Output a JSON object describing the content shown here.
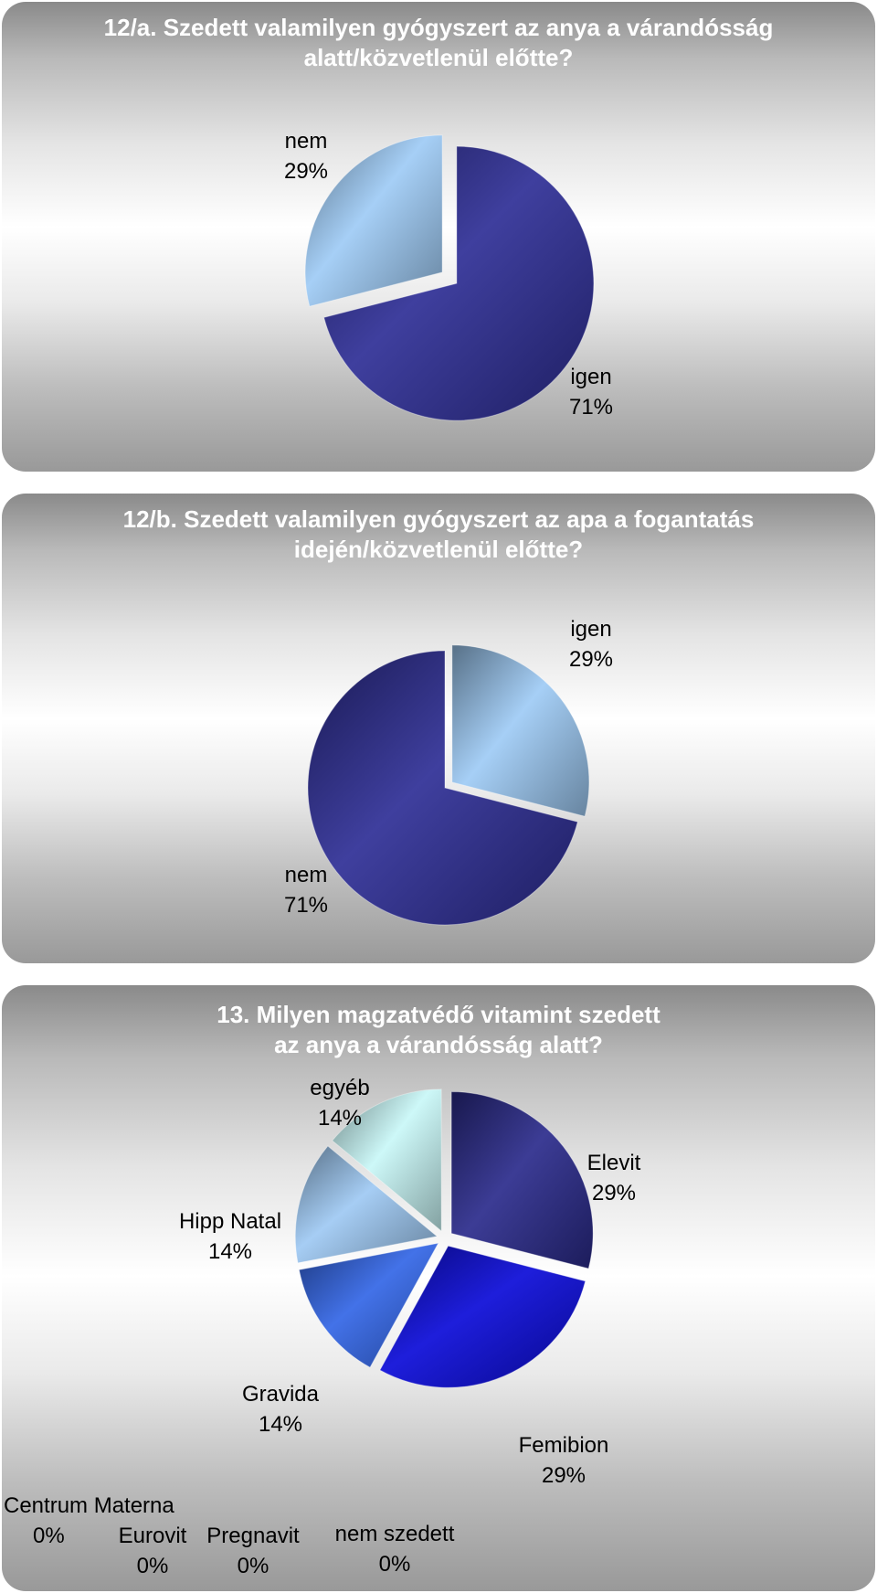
{
  "charts": [
    {
      "title_lines": [
        "12/a. Szedett valamilyen gyógyszert az anya a várandósság",
        "alatt/közvetlenül előtte?"
      ],
      "slices": [
        {
          "label": "igen",
          "pct": "71%"
        },
        {
          "label": "nem",
          "pct": "29%"
        }
      ]
    },
    {
      "title_lines": [
        "12/b. Szedett valamilyen gyógyszert az apa a fogantatás",
        "idején/közvetlenül előtte?"
      ],
      "slices": [
        {
          "label": "igen",
          "pct": "29%"
        },
        {
          "label": "nem",
          "pct": "71%"
        }
      ]
    },
    {
      "title_lines": [
        "13. Milyen magzatvédő vitamint szedett",
        "az anya a várandósság alatt?"
      ],
      "slices": [
        {
          "label": "Elevit",
          "pct": "29%"
        },
        {
          "label": "Femibion",
          "pct": "29%"
        },
        {
          "label": "Gravida",
          "pct": "14%"
        },
        {
          "label": "Hipp Natal",
          "pct": "14%"
        },
        {
          "label": "egyéb",
          "pct": "14%"
        },
        {
          "label": "nem szedett",
          "pct": "0%"
        },
        {
          "label": "Pregnavit",
          "pct": "0%"
        },
        {
          "label": "Eurovit",
          "pct": "0%"
        },
        {
          "label": "Centrum Materna",
          "pct": "0%"
        }
      ]
    }
  ],
  "chart_data": [
    {
      "type": "pie",
      "title": "12/a. Szedett valamilyen gyógyszert az anya a várandósság alatt/közvetlenül előtte?",
      "categories": [
        "igen",
        "nem"
      ],
      "values": [
        71,
        29
      ],
      "colors": [
        "#2e2e96",
        "#9ecbf5"
      ]
    },
    {
      "type": "pie",
      "title": "12/b. Szedett valamilyen gyógyszert az apa a fogantatás idején/közvetlenül előtte?",
      "categories": [
        "igen",
        "nem"
      ],
      "values": [
        29,
        71
      ],
      "colors": [
        "#9ecbf5",
        "#2e2e96"
      ]
    },
    {
      "type": "pie",
      "title": "13. Milyen magzatvédő vitamint szedett az anya a várandósság alatt?",
      "categories": [
        "Elevit",
        "Femibion",
        "Gravida",
        "Hipp Natal",
        "egyéb",
        "nem szedett",
        "Pregnavit",
        "Eurovit",
        "Centrum Materna"
      ],
      "values": [
        29,
        29,
        14,
        14,
        14,
        0,
        0,
        0,
        0
      ],
      "colors": [
        "#2b2b8c",
        "#0a0ad8",
        "#3366e6",
        "#9ec9f3",
        "#c9f7f7",
        "#000000",
        "#000000",
        "#000000",
        "#000000"
      ]
    }
  ]
}
